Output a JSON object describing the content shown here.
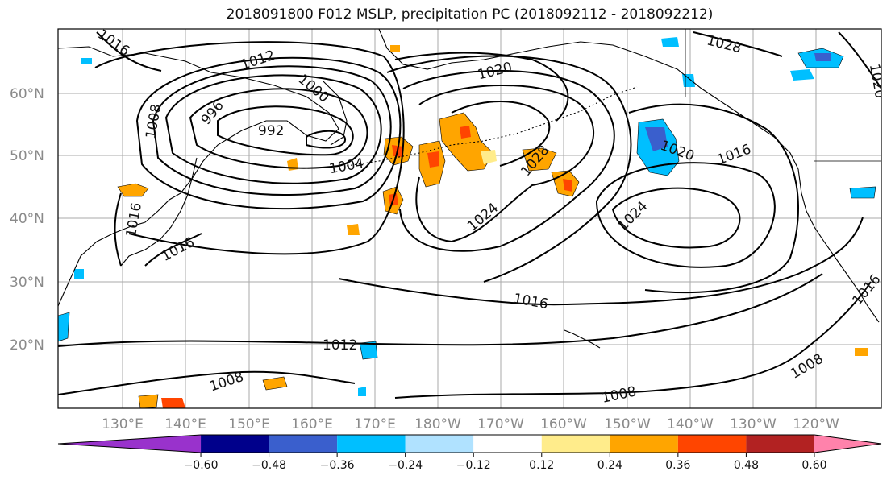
{
  "title": "2018091800 F012 MSLP, precipitation PC (2018092112 - 2018092212)",
  "lat_labels": [
    "60°N",
    "50°N",
    "40°N",
    "30°N",
    "20°N"
  ],
  "lon_labels": [
    "130°E",
    "140°E",
    "150°E",
    "160°E",
    "170°E",
    "180°W",
    "170°W",
    "160°W",
    "150°W",
    "140°W",
    "130°W",
    "120°W"
  ],
  "isobar_labels": [
    "1016",
    "1012",
    "1020",
    "1028",
    "1020",
    "1008",
    "996",
    "992",
    "1000",
    "1004",
    "1020",
    "1016",
    "1028",
    "1024",
    "1024",
    "1016",
    "1016",
    "1016",
    "1012",
    "1008",
    "1008",
    "1008",
    "1016"
  ],
  "colorbar": {
    "colors": [
      "#9932cc",
      "#00008b",
      "#3a5fcd",
      "#00bfff",
      "#b0e2ff",
      "#ffffff",
      "#ffec8b",
      "#ffa500",
      "#ff4500",
      "#b22222",
      "#ff82ab"
    ],
    "tick_labels": [
      "−0.60",
      "−0.48",
      "−0.36",
      "−0.24",
      "−0.12",
      "0.12",
      "0.24",
      "0.36",
      "0.48",
      "0.60"
    ]
  },
  "colors": {
    "positive_precip": "#ffa500",
    "strong_positive": "#ff4500",
    "negative_precip": "#00bfff",
    "strong_negative": "#3a5fcd",
    "isobar": "#000000",
    "grid": "#aaaaaa"
  }
}
